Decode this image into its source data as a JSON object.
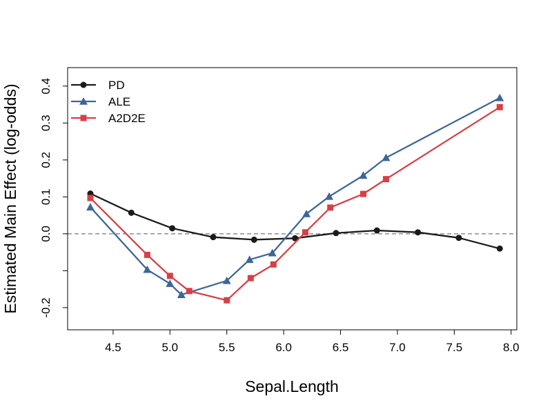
{
  "chart_data": {
    "type": "line",
    "title": "",
    "xlabel": "Sepal.Length",
    "ylabel": "Estimated Main Effect (log-odds)",
    "xlim": [
      4.1,
      8.05
    ],
    "ylim": [
      -0.26,
      0.45
    ],
    "x_ticks": [
      4.5,
      5.0,
      5.5,
      6.0,
      6.5,
      7.0,
      7.5,
      8.0
    ],
    "x_tick_labels": [
      "4.5",
      "5.0",
      "5.5",
      "6.0",
      "6.5",
      "7.0",
      "7.5",
      "8.0"
    ],
    "y_ticks": [
      -0.2,
      -0.1,
      0.0,
      0.1,
      0.2,
      0.3,
      0.4
    ],
    "y_tick_labels": [
      "-0.2",
      "",
      "0.0",
      "0.1",
      "0.2",
      "0.3",
      "0.4"
    ],
    "reference_line": {
      "y": 0.0,
      "style": "dashed",
      "color": "#555555"
    },
    "legend": {
      "position": "top-left"
    },
    "series": [
      {
        "name": "PD",
        "color": "#1a1a1a",
        "marker": "circle",
        "x": [
          4.3,
          4.66,
          5.02,
          5.38,
          5.74,
          6.1,
          6.46,
          6.82,
          7.18,
          7.54,
          7.9
        ],
        "y": [
          0.109,
          0.057,
          0.015,
          -0.009,
          -0.016,
          -0.012,
          0.002,
          0.009,
          0.004,
          -0.011,
          -0.04
        ]
      },
      {
        "name": "ALE",
        "color": "#3d6699",
        "marker": "triangle",
        "x": [
          4.3,
          4.8,
          5.0,
          5.1,
          5.5,
          5.7,
          5.9,
          6.2,
          6.4,
          6.7,
          6.9,
          7.9
        ],
        "y": [
          0.072,
          -0.097,
          -0.135,
          -0.165,
          -0.127,
          -0.07,
          -0.052,
          0.054,
          0.101,
          0.158,
          0.206,
          0.368
        ]
      },
      {
        "name": "A2D2E",
        "color": "#d93f46",
        "marker": "square",
        "x": [
          4.3,
          4.8,
          5.0,
          5.17,
          5.5,
          5.71,
          5.91,
          6.19,
          6.41,
          6.7,
          6.9,
          7.9
        ],
        "y": [
          0.097,
          -0.057,
          -0.114,
          -0.155,
          -0.18,
          -0.12,
          -0.083,
          0.004,
          0.071,
          0.108,
          0.148,
          0.343
        ]
      }
    ]
  }
}
